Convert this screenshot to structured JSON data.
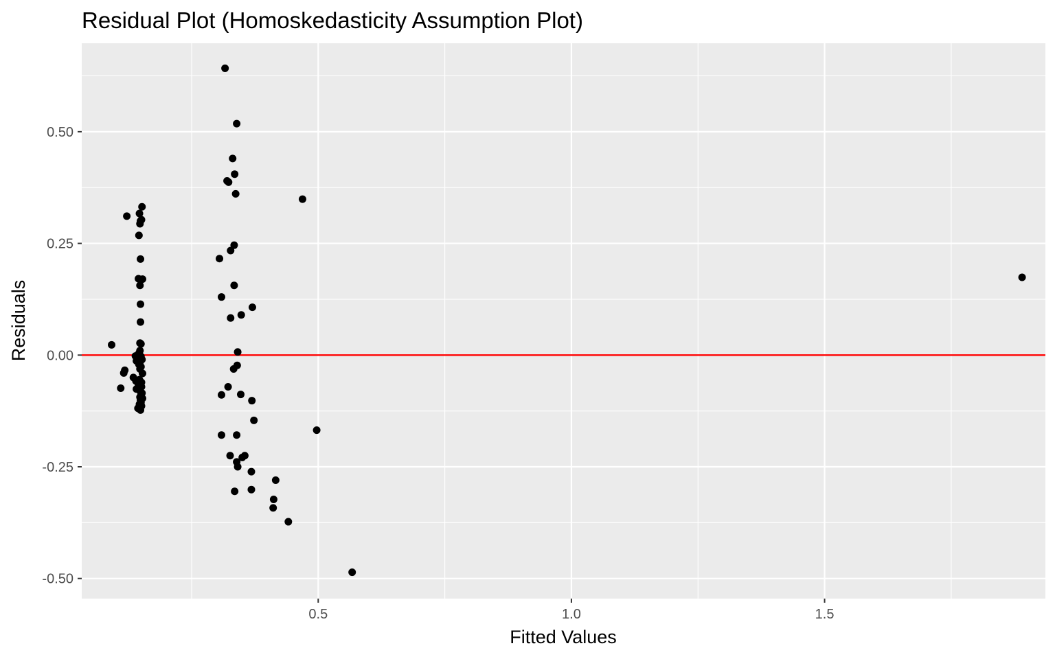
{
  "chart_data": {
    "type": "scatter",
    "title": "Residual Plot (Homoskedasticity Assumption Plot)",
    "xlabel": "Fitted Values",
    "ylabel": "Residuals",
    "xlim": [
      0.033,
      1.936
    ],
    "ylim": [
      -0.545,
      0.698
    ],
    "x_ticks": [
      0.5,
      1.0,
      1.5
    ],
    "x_tick_labels": [
      "0.5",
      "1.0",
      "1.5"
    ],
    "x_minor_ticks": [
      0.25,
      0.75,
      1.25,
      1.75
    ],
    "y_ticks": [
      -0.5,
      -0.25,
      0.0,
      0.25,
      0.5
    ],
    "y_tick_labels": [
      "-0.50",
      "-0.25",
      "0.00",
      "0.25",
      "0.50"
    ],
    "y_minor_ticks": [
      -0.375,
      -0.125,
      0.125,
      0.375,
      0.625
    ],
    "grid": true,
    "reference_line": {
      "y": 0.0,
      "color": "#ff0000"
    },
    "colors": {
      "panel": "#ebebeb",
      "grid": "#ffffff",
      "points": "#000000",
      "tick_text": "#4d4d4d"
    },
    "points": [
      [
        0.316,
        0.642
      ],
      [
        0.339,
        0.518
      ],
      [
        0.331,
        0.44
      ],
      [
        0.335,
        0.405
      ],
      [
        0.32,
        0.39
      ],
      [
        0.323,
        0.387
      ],
      [
        0.337,
        0.361
      ],
      [
        0.469,
        0.349
      ],
      [
        0.334,
        0.246
      ],
      [
        0.327,
        0.234
      ],
      [
        0.305,
        0.216
      ],
      [
        0.334,
        0.156
      ],
      [
        0.309,
        0.13
      ],
      [
        0.37,
        0.107
      ],
      [
        0.348,
        0.09
      ],
      [
        0.327,
        0.083
      ],
      [
        0.341,
        0.007
      ],
      [
        0.34,
        -0.023
      ],
      [
        0.333,
        -0.031
      ],
      [
        0.322,
        -0.071
      ],
      [
        0.309,
        -0.089
      ],
      [
        0.347,
        -0.088
      ],
      [
        0.369,
        -0.102
      ],
      [
        0.373,
        -0.146
      ],
      [
        0.497,
        -0.168
      ],
      [
        0.309,
        -0.179
      ],
      [
        0.339,
        -0.179
      ],
      [
        0.326,
        -0.225
      ],
      [
        0.355,
        -0.225
      ],
      [
        0.35,
        -0.229
      ],
      [
        0.339,
        -0.239
      ],
      [
        0.341,
        -0.25
      ],
      [
        0.368,
        -0.261
      ],
      [
        0.416,
        -0.28
      ],
      [
        0.368,
        -0.301
      ],
      [
        0.335,
        -0.305
      ],
      [
        0.412,
        -0.323
      ],
      [
        0.411,
        -0.342
      ],
      [
        0.441,
        -0.373
      ],
      [
        0.567,
        -0.486
      ],
      [
        1.89,
        0.174
      ],
      [
        0.122,
        0.311
      ],
      [
        0.152,
        0.332
      ],
      [
        0.147,
        0.317
      ],
      [
        0.149,
        0.3
      ],
      [
        0.151,
        0.303
      ],
      [
        0.148,
        0.294
      ],
      [
        0.146,
        0.268
      ],
      [
        0.149,
        0.215
      ],
      [
        0.145,
        0.171
      ],
      [
        0.153,
        0.17
      ],
      [
        0.148,
        0.156
      ],
      [
        0.149,
        0.114
      ],
      [
        0.149,
        0.074
      ],
      [
        0.148,
        0.027
      ],
      [
        0.15,
        0.025
      ],
      [
        0.092,
        0.023
      ],
      [
        0.148,
        0.01
      ],
      [
        0.146,
        0.004
      ],
      [
        0.139,
        -0.002
      ],
      [
        0.15,
        -0.003
      ],
      [
        0.143,
        -0.008
      ],
      [
        0.152,
        -0.01
      ],
      [
        0.141,
        -0.013
      ],
      [
        0.148,
        -0.016
      ],
      [
        0.146,
        -0.021
      ],
      [
        0.15,
        -0.026
      ],
      [
        0.148,
        -0.031
      ],
      [
        0.118,
        -0.034
      ],
      [
        0.116,
        -0.04
      ],
      [
        0.153,
        -0.041
      ],
      [
        0.135,
        -0.05
      ],
      [
        0.147,
        -0.055
      ],
      [
        0.14,
        -0.058
      ],
      [
        0.151,
        -0.061
      ],
      [
        0.145,
        -0.066
      ],
      [
        0.151,
        -0.071
      ],
      [
        0.11,
        -0.074
      ],
      [
        0.141,
        -0.076
      ],
      [
        0.148,
        -0.08
      ],
      [
        0.152,
        -0.085
      ],
      [
        0.15,
        -0.09
      ],
      [
        0.148,
        -0.094
      ],
      [
        0.153,
        -0.097
      ],
      [
        0.149,
        -0.101
      ],
      [
        0.15,
        -0.106
      ],
      [
        0.147,
        -0.11
      ],
      [
        0.151,
        -0.114
      ],
      [
        0.146,
        -0.117
      ],
      [
        0.144,
        -0.119
      ],
      [
        0.149,
        -0.123
      ]
    ]
  }
}
